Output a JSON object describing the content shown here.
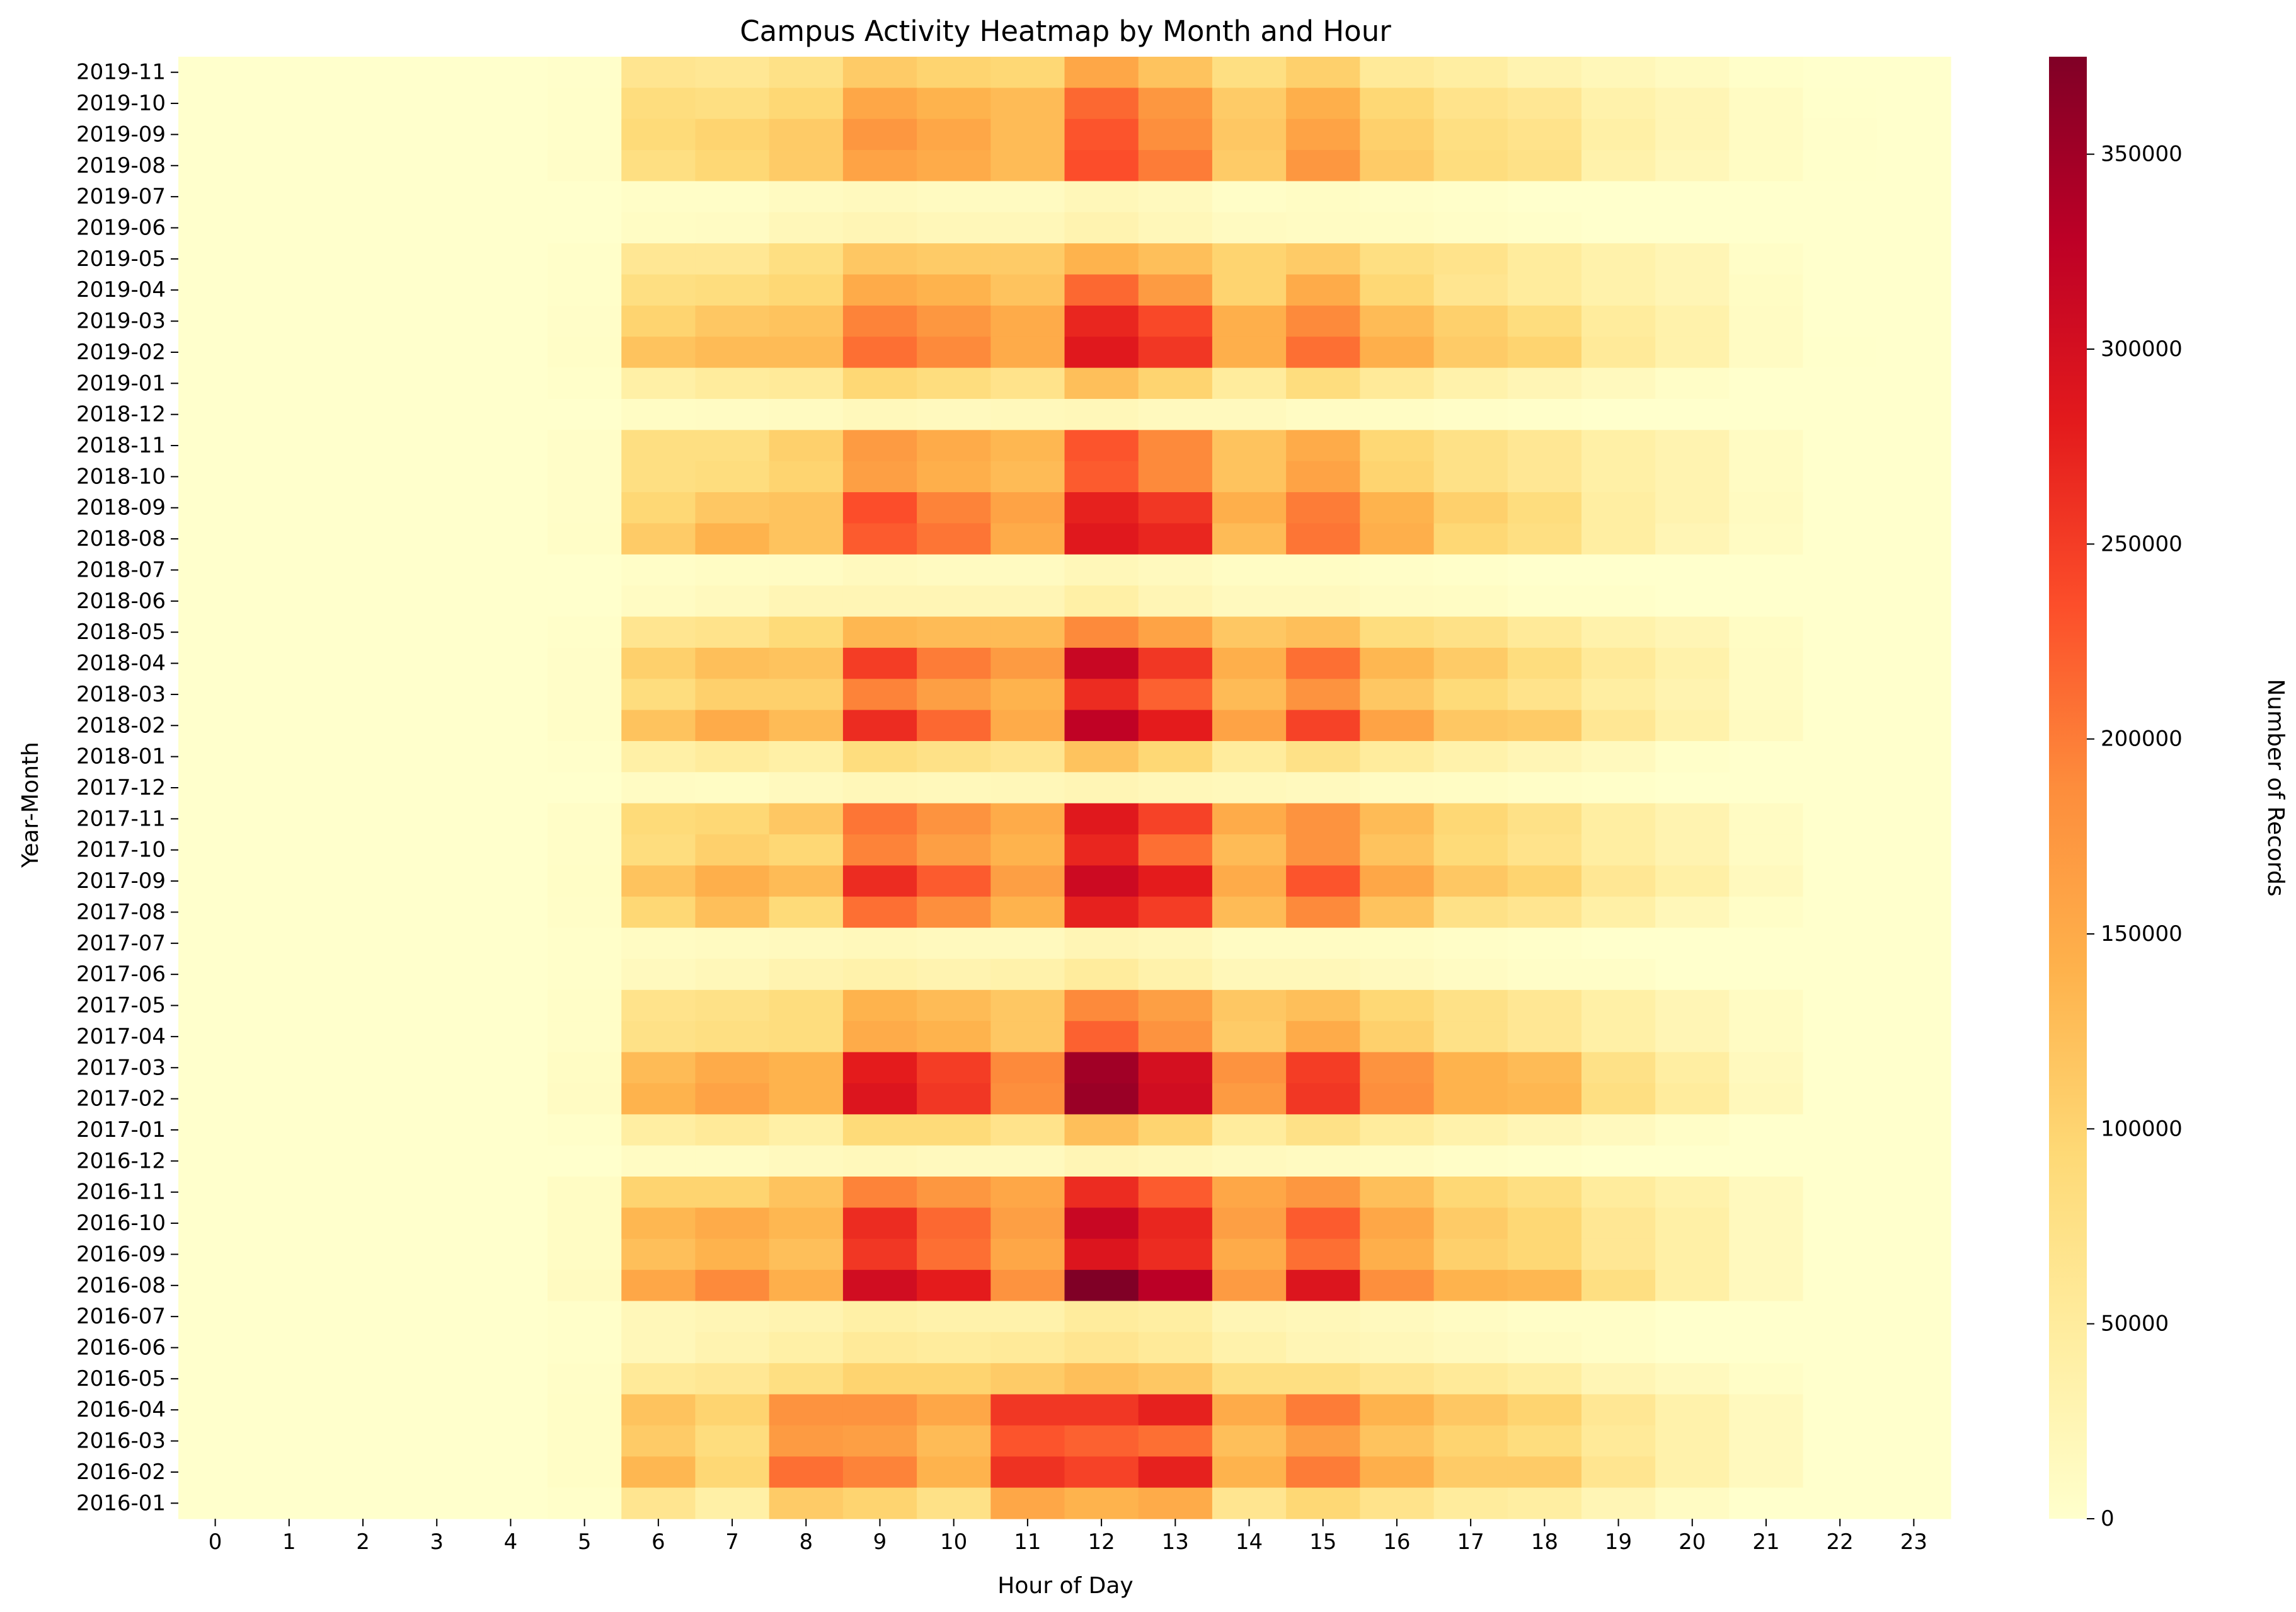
{
  "chart_data": {
    "type": "heatmap",
    "title": "Campus Activity Heatmap by Month and Hour",
    "xlabel": "Hour of Day",
    "ylabel": "Year-Month",
    "colorbar_label": "Number of Records",
    "colormap": "YlOrRd",
    "colorscale": [
      "#ffffcc",
      "#ffeda0",
      "#fed976",
      "#feb24c",
      "#fd8d3c",
      "#fc4e2a",
      "#e31a1c",
      "#bd0026",
      "#800026"
    ],
    "vmin": 0,
    "vmax": 375000,
    "colorbar_ticks": [
      "0",
      "50000",
      "100000",
      "150000",
      "200000",
      "250000",
      "300000",
      "350000"
    ],
    "x": [
      "0",
      "1",
      "2",
      "3",
      "4",
      "5",
      "6",
      "7",
      "8",
      "9",
      "10",
      "11",
      "12",
      "13",
      "14",
      "15",
      "16",
      "17",
      "18",
      "19",
      "20",
      "21",
      "22",
      "23"
    ],
    "y": [
      "2019-11",
      "2019-10",
      "2019-09",
      "2019-08",
      "2019-07",
      "2019-06",
      "2019-05",
      "2019-04",
      "2019-03",
      "2019-02",
      "2019-01",
      "2018-12",
      "2018-11",
      "2018-10",
      "2018-09",
      "2018-08",
      "2018-07",
      "2018-06",
      "2018-05",
      "2018-04",
      "2018-03",
      "2018-02",
      "2018-01",
      "2017-12",
      "2017-11",
      "2017-10",
      "2017-09",
      "2017-08",
      "2017-07",
      "2017-06",
      "2017-05",
      "2017-04",
      "2017-03",
      "2017-02",
      "2017-01",
      "2016-12",
      "2016-11",
      "2016-10",
      "2016-09",
      "2016-08",
      "2016-07",
      "2016-06",
      "2016-05",
      "2016-04",
      "2016-03",
      "2016-02",
      "2016-01"
    ],
    "values": [
      [
        0,
        0,
        0,
        0,
        0,
        2000,
        65000,
        60000,
        75000,
        110000,
        100000,
        95000,
        155000,
        120000,
        80000,
        105000,
        55000,
        45000,
        30000,
        20000,
        12000,
        3000,
        0,
        0
      ],
      [
        0,
        0,
        0,
        0,
        0,
        3000,
        85000,
        80000,
        95000,
        155000,
        140000,
        130000,
        215000,
        175000,
        110000,
        145000,
        95000,
        70000,
        60000,
        35000,
        25000,
        10000,
        1000,
        0
      ],
      [
        0,
        0,
        0,
        0,
        0,
        3000,
        90000,
        100000,
        110000,
        175000,
        155000,
        130000,
        230000,
        185000,
        115000,
        160000,
        105000,
        80000,
        70000,
        40000,
        25000,
        10000,
        2000,
        0
      ],
      [
        0,
        0,
        0,
        0,
        0,
        4000,
        80000,
        95000,
        110000,
        160000,
        150000,
        130000,
        235000,
        200000,
        110000,
        175000,
        110000,
        85000,
        75000,
        35000,
        20000,
        8000,
        1000,
        0
      ],
      [
        0,
        0,
        0,
        0,
        0,
        0,
        5000,
        5000,
        12000,
        15000,
        12000,
        12000,
        20000,
        15000,
        5000,
        8000,
        5000,
        3000,
        0,
        0,
        0,
        0,
        0,
        0
      ],
      [
        0,
        0,
        0,
        0,
        0,
        0,
        8000,
        10000,
        20000,
        25000,
        20000,
        20000,
        30000,
        20000,
        12000,
        10000,
        8000,
        5000,
        3000,
        0,
        0,
        0,
        0,
        0
      ],
      [
        0,
        0,
        0,
        0,
        0,
        3000,
        60000,
        60000,
        80000,
        115000,
        110000,
        110000,
        140000,
        125000,
        100000,
        110000,
        80000,
        70000,
        50000,
        35000,
        25000,
        5000,
        0,
        0
      ],
      [
        0,
        0,
        0,
        0,
        0,
        3000,
        80000,
        85000,
        95000,
        150000,
        140000,
        120000,
        215000,
        170000,
        100000,
        150000,
        95000,
        65000,
        50000,
        35000,
        25000,
        8000,
        0,
        0
      ],
      [
        0,
        0,
        0,
        0,
        0,
        4000,
        100000,
        115000,
        120000,
        195000,
        175000,
        150000,
        270000,
        240000,
        145000,
        190000,
        130000,
        105000,
        85000,
        50000,
        35000,
        10000,
        0,
        0
      ],
      [
        0,
        0,
        0,
        0,
        0,
        5000,
        120000,
        130000,
        130000,
        210000,
        190000,
        150000,
        285000,
        255000,
        145000,
        210000,
        145000,
        110000,
        100000,
        55000,
        35000,
        10000,
        1000,
        0
      ],
      [
        0,
        0,
        0,
        0,
        0,
        3000,
        40000,
        50000,
        55000,
        95000,
        85000,
        70000,
        125000,
        100000,
        50000,
        85000,
        55000,
        35000,
        25000,
        15000,
        5000,
        0,
        0,
        0
      ],
      [
        0,
        0,
        0,
        0,
        0,
        0,
        8000,
        10000,
        12000,
        18000,
        15000,
        18000,
        20000,
        15000,
        15000,
        10000,
        8000,
        5000,
        3000,
        0,
        0,
        0,
        0,
        0
      ],
      [
        0,
        0,
        0,
        0,
        0,
        4000,
        80000,
        80000,
        105000,
        170000,
        150000,
        135000,
        230000,
        190000,
        120000,
        150000,
        95000,
        75000,
        60000,
        40000,
        30000,
        10000,
        0,
        0
      ],
      [
        0,
        0,
        0,
        0,
        0,
        4000,
        80000,
        85000,
        100000,
        165000,
        145000,
        130000,
        225000,
        190000,
        120000,
        160000,
        100000,
        75000,
        60000,
        40000,
        30000,
        10000,
        0,
        0
      ],
      [
        0,
        0,
        0,
        0,
        0,
        4000,
        95000,
        115000,
        120000,
        235000,
        195000,
        160000,
        275000,
        255000,
        145000,
        200000,
        140000,
        105000,
        85000,
        45000,
        30000,
        12000,
        0,
        0
      ],
      [
        0,
        0,
        0,
        0,
        0,
        5000,
        110000,
        140000,
        120000,
        225000,
        205000,
        150000,
        285000,
        270000,
        130000,
        205000,
        145000,
        95000,
        80000,
        45000,
        25000,
        10000,
        0,
        0
      ],
      [
        0,
        0,
        0,
        0,
        0,
        0,
        5000,
        8000,
        10000,
        15000,
        12000,
        12000,
        20000,
        15000,
        8000,
        8000,
        5000,
        3000,
        0,
        0,
        0,
        0,
        0,
        0
      ],
      [
        0,
        0,
        0,
        0,
        0,
        0,
        10000,
        15000,
        25000,
        25000,
        25000,
        25000,
        40000,
        25000,
        15000,
        15000,
        10000,
        8000,
        3000,
        3000,
        0,
        0,
        0,
        0
      ],
      [
        0,
        0,
        0,
        0,
        0,
        3000,
        65000,
        70000,
        90000,
        135000,
        130000,
        130000,
        190000,
        160000,
        115000,
        125000,
        85000,
        75000,
        55000,
        35000,
        25000,
        8000,
        0,
        0
      ],
      [
        0,
        0,
        0,
        0,
        0,
        4000,
        105000,
        125000,
        120000,
        250000,
        200000,
        170000,
        315000,
        255000,
        145000,
        210000,
        135000,
        110000,
        85000,
        55000,
        35000,
        10000,
        0,
        0
      ],
      [
        0,
        0,
        0,
        0,
        0,
        4000,
        85000,
        105000,
        105000,
        195000,
        165000,
        140000,
        265000,
        220000,
        130000,
        180000,
        115000,
        90000,
        70000,
        45000,
        30000,
        10000,
        0,
        0
      ],
      [
        0,
        0,
        0,
        0,
        0,
        5000,
        120000,
        150000,
        130000,
        265000,
        215000,
        150000,
        325000,
        280000,
        160000,
        245000,
        160000,
        115000,
        110000,
        60000,
        35000,
        12000,
        0,
        0
      ],
      [
        0,
        0,
        0,
        0,
        0,
        2000,
        40000,
        50000,
        40000,
        85000,
        75000,
        65000,
        120000,
        95000,
        50000,
        75000,
        50000,
        35000,
        25000,
        15000,
        3000,
        0,
        0,
        0
      ],
      [
        0,
        0,
        0,
        0,
        0,
        0,
        10000,
        8000,
        15000,
        20000,
        18000,
        20000,
        25000,
        20000,
        18000,
        15000,
        10000,
        8000,
        5000,
        3000,
        0,
        0,
        0,
        0
      ],
      [
        0,
        0,
        0,
        0,
        0,
        5000,
        90000,
        95000,
        115000,
        205000,
        180000,
        150000,
        285000,
        245000,
        150000,
        180000,
        130000,
        95000,
        75000,
        45000,
        30000,
        10000,
        0,
        0
      ],
      [
        0,
        0,
        0,
        0,
        0,
        5000,
        85000,
        105000,
        95000,
        195000,
        165000,
        140000,
        270000,
        210000,
        130000,
        180000,
        120000,
        90000,
        70000,
        45000,
        30000,
        10000,
        0,
        0
      ],
      [
        0,
        0,
        0,
        0,
        0,
        6000,
        120000,
        145000,
        130000,
        265000,
        225000,
        165000,
        310000,
        280000,
        150000,
        230000,
        155000,
        115000,
        100000,
        60000,
        40000,
        15000,
        0,
        0
      ],
      [
        0,
        0,
        0,
        0,
        0,
        5000,
        95000,
        125000,
        90000,
        210000,
        185000,
        140000,
        275000,
        250000,
        130000,
        190000,
        120000,
        75000,
        65000,
        40000,
        20000,
        5000,
        0,
        0
      ],
      [
        0,
        0,
        0,
        0,
        0,
        3000,
        10000,
        12000,
        15000,
        18000,
        15000,
        15000,
        25000,
        20000,
        10000,
        10000,
        8000,
        5000,
        3000,
        0,
        0,
        0,
        0,
        0
      ],
      [
        0,
        0,
        0,
        0,
        0,
        3000,
        15000,
        20000,
        30000,
        35000,
        30000,
        35000,
        50000,
        35000,
        20000,
        20000,
        15000,
        10000,
        5000,
        5000,
        0,
        0,
        0,
        0
      ],
      [
        0,
        0,
        0,
        0,
        0,
        5000,
        70000,
        75000,
        85000,
        140000,
        130000,
        115000,
        190000,
        165000,
        115000,
        125000,
        95000,
        75000,
        60000,
        40000,
        25000,
        10000,
        0,
        0
      ],
      [
        0,
        0,
        0,
        0,
        0,
        5000,
        75000,
        80000,
        85000,
        150000,
        140000,
        115000,
        220000,
        180000,
        110000,
        150000,
        105000,
        75000,
        60000,
        40000,
        25000,
        10000,
        0,
        0
      ],
      [
        0,
        0,
        0,
        0,
        0,
        8000,
        130000,
        150000,
        140000,
        280000,
        250000,
        190000,
        350000,
        300000,
        180000,
        250000,
        180000,
        140000,
        130000,
        75000,
        45000,
        15000,
        0,
        0
      ],
      [
        0,
        0,
        0,
        0,
        0,
        10000,
        140000,
        160000,
        140000,
        290000,
        255000,
        185000,
        355000,
        305000,
        170000,
        255000,
        185000,
        140000,
        135000,
        80000,
        50000,
        18000,
        0,
        0
      ],
      [
        0,
        0,
        0,
        0,
        0,
        3000,
        45000,
        55000,
        40000,
        90000,
        90000,
        70000,
        125000,
        100000,
        50000,
        75000,
        50000,
        35000,
        25000,
        15000,
        5000,
        0,
        0,
        0
      ],
      [
        0,
        0,
        0,
        0,
        0,
        0,
        10000,
        10000,
        15000,
        18000,
        15000,
        15000,
        25000,
        20000,
        15000,
        12000,
        10000,
        5000,
        3000,
        0,
        0,
        0,
        0,
        0
      ],
      [
        0,
        0,
        0,
        0,
        0,
        8000,
        100000,
        100000,
        120000,
        195000,
        175000,
        155000,
        265000,
        225000,
        155000,
        175000,
        125000,
        95000,
        80000,
        50000,
        35000,
        15000,
        0,
        0
      ],
      [
        0,
        0,
        0,
        0,
        0,
        8000,
        135000,
        150000,
        135000,
        265000,
        215000,
        165000,
        315000,
        270000,
        165000,
        225000,
        155000,
        110000,
        95000,
        60000,
        40000,
        15000,
        0,
        0
      ],
      [
        0,
        0,
        0,
        0,
        0,
        8000,
        125000,
        140000,
        125000,
        255000,
        210000,
        155000,
        290000,
        265000,
        150000,
        210000,
        145000,
        105000,
        95000,
        60000,
        40000,
        15000,
        0,
        0
      ],
      [
        0,
        0,
        0,
        0,
        0,
        12000,
        155000,
        190000,
        145000,
        305000,
        280000,
        180000,
        375000,
        330000,
        170000,
        290000,
        185000,
        140000,
        135000,
        80000,
        40000,
        15000,
        0,
        0
      ],
      [
        0,
        0,
        0,
        0,
        0,
        3000,
        20000,
        25000,
        30000,
        40000,
        35000,
        35000,
        50000,
        45000,
        25000,
        20000,
        15000,
        10000,
        5000,
        5000,
        0,
        0,
        0,
        0
      ],
      [
        0,
        0,
        0,
        0,
        0,
        3000,
        20000,
        30000,
        40000,
        55000,
        50000,
        55000,
        65000,
        55000,
        35000,
        25000,
        20000,
        15000,
        10000,
        5000,
        0,
        0,
        0,
        0
      ],
      [
        0,
        0,
        0,
        0,
        0,
        5000,
        55000,
        60000,
        80000,
        100000,
        100000,
        110000,
        125000,
        115000,
        80000,
        80000,
        65000,
        55000,
        45000,
        25000,
        15000,
        5000,
        0,
        0
      ],
      [
        0,
        0,
        0,
        0,
        0,
        6000,
        120000,
        100000,
        180000,
        180000,
        155000,
        255000,
        255000,
        275000,
        150000,
        200000,
        140000,
        115000,
        100000,
        60000,
        35000,
        15000,
        0,
        0
      ],
      [
        0,
        0,
        0,
        0,
        0,
        6000,
        110000,
        85000,
        170000,
        165000,
        130000,
        230000,
        220000,
        210000,
        125000,
        165000,
        120000,
        100000,
        85000,
        55000,
        35000,
        15000,
        0,
        0
      ],
      [
        0,
        0,
        0,
        0,
        0,
        6000,
        135000,
        95000,
        210000,
        195000,
        140000,
        260000,
        245000,
        275000,
        140000,
        200000,
        145000,
        110000,
        110000,
        65000,
        35000,
        15000,
        0,
        0
      ],
      [
        0,
        0,
        0,
        0,
        0,
        3000,
        65000,
        40000,
        110000,
        100000,
        75000,
        155000,
        140000,
        150000,
        65000,
        95000,
        70000,
        50000,
        45000,
        25000,
        10000,
        0,
        0,
        0
      ]
    ]
  }
}
